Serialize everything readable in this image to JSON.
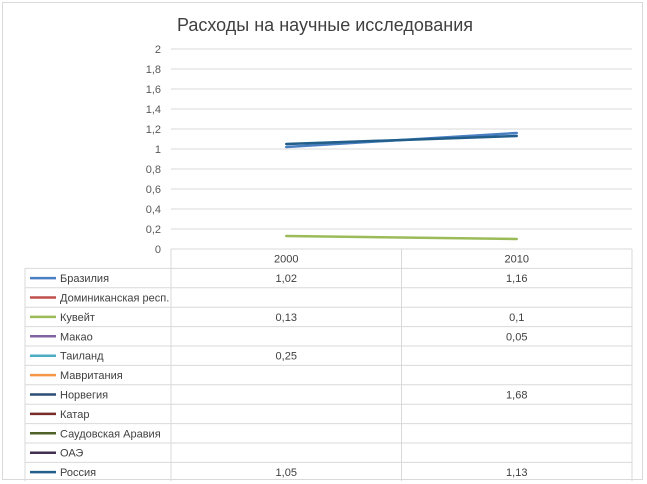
{
  "chart_data": {
    "type": "line",
    "title": "Расходы на научные исследования",
    "xlabel": "",
    "ylabel": "",
    "categories": [
      "2000",
      "2010"
    ],
    "ylim": [
      0,
      2
    ],
    "yticks": [
      "0",
      "0,2",
      "0,4",
      "0,6",
      "0,8",
      "1",
      "1,2",
      "1,4",
      "1,6",
      "1,8",
      "2"
    ],
    "grid": true,
    "legend": "data-table",
    "series": [
      {
        "name": "Бразилия",
        "color": "#4a7fc1",
        "values": [
          1.02,
          1.16
        ],
        "labels": [
          "1,02",
          "1,16"
        ]
      },
      {
        "name": "Доминиканская респ.",
        "color": "#c0504d",
        "values": [
          null,
          null
        ],
        "labels": [
          "",
          ""
        ]
      },
      {
        "name": "Кувейт",
        "color": "#9bbb59",
        "values": [
          0.13,
          0.1
        ],
        "labels": [
          "0,13",
          "0,1"
        ]
      },
      {
        "name": "Макао",
        "color": "#8064a2",
        "values": [
          null,
          0.05
        ],
        "labels": [
          "",
          "0,05"
        ]
      },
      {
        "name": "Таиланд",
        "color": "#4bacc6",
        "values": [
          0.25,
          null
        ],
        "labels": [
          "0,25",
          ""
        ]
      },
      {
        "name": "Мавритания",
        "color": "#f79646",
        "values": [
          null,
          null
        ],
        "labels": [
          "",
          ""
        ]
      },
      {
        "name": "Норвегия",
        "color": "#2c4d75",
        "values": [
          null,
          1.68
        ],
        "labels": [
          "",
          "1,68"
        ]
      },
      {
        "name": "Катар",
        "color": "#772c2a",
        "values": [
          null,
          null
        ],
        "labels": [
          "",
          ""
        ]
      },
      {
        "name": "Саудовская Аравия",
        "color": "#4f6228",
        "values": [
          null,
          null
        ],
        "labels": [
          "",
          ""
        ]
      },
      {
        "name": "ОАЭ",
        "color": "#403151",
        "values": [
          null,
          null
        ],
        "labels": [
          "",
          ""
        ]
      },
      {
        "name": "Россия",
        "color": "#215e8a",
        "values": [
          1.05,
          1.13
        ],
        "labels": [
          "1,05",
          "1,13"
        ]
      }
    ]
  }
}
